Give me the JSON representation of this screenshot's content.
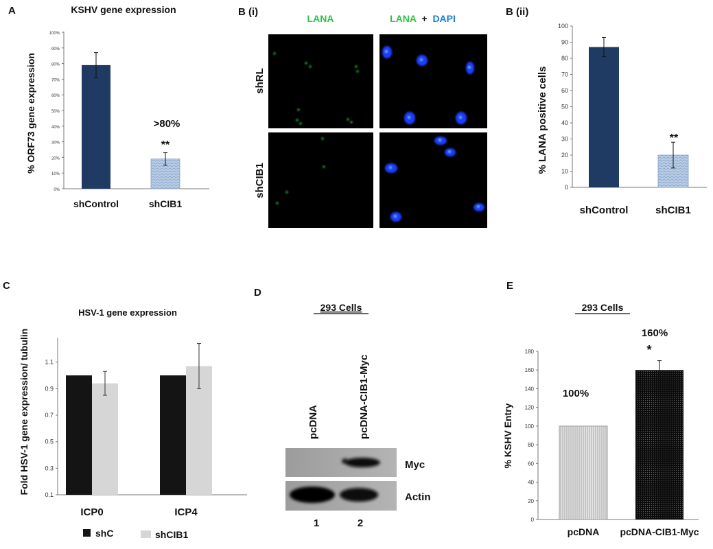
{
  "panel_labels": {
    "a": "A",
    "bi": "B (i)",
    "bii": "B (ii)",
    "c": "C",
    "d": "D",
    "e": "E"
  },
  "colors": {
    "navy": "#1f3a63",
    "light_blue": "#a8bfdc",
    "black": "#141414",
    "light_gray": "#d6d6d6",
    "green": "#2ec24a",
    "blue": "#1a7fd6"
  },
  "chart_data": [
    {
      "panel": "A",
      "type": "bar",
      "title": "KSHV gene expression",
      "ylabel": "% ORF73 gene expression",
      "xlabel": "",
      "categories": [
        "shControl",
        "shCIB1"
      ],
      "values": [
        79,
        19
      ],
      "errors": [
        8,
        4
      ],
      "ylim": [
        0,
        100
      ],
      "yticks": [
        "0%",
        "10%",
        "20%",
        "30%",
        "40%",
        "50%",
        "60%",
        "70%",
        "80%",
        "90%",
        "100%"
      ],
      "annotations": [
        ">80%",
        "**"
      ],
      "grid": false
    },
    {
      "panel": "B (ii)",
      "type": "bar",
      "title": "",
      "ylabel": "% LANA positive cells",
      "xlabel": "",
      "categories": [
        "shControl",
        "shCIB1"
      ],
      "values": [
        87,
        20
      ],
      "errors": [
        6,
        8
      ],
      "ylim": [
        0,
        100
      ],
      "yticks": [
        "0",
        "10",
        "20",
        "30",
        "40",
        "50",
        "60",
        "70",
        "80",
        "90",
        "100"
      ],
      "annotations": [
        "**"
      ],
      "grid": false
    },
    {
      "panel": "C",
      "type": "bar",
      "title": "HSV-1 gene expression",
      "ylabel": "Fold HSV-1 gene expression/ tubulin",
      "xlabel": "",
      "categories": [
        "ICP0",
        "ICP4"
      ],
      "series": [
        {
          "name": "shC",
          "values": [
            1.0,
            1.0
          ],
          "errors": [
            0,
            0
          ]
        },
        {
          "name": "shCIB1",
          "values": [
            0.94,
            1.07
          ],
          "errors": [
            0.09,
            0.17
          ]
        }
      ],
      "ylim": [
        0.1,
        1.3
      ],
      "yticks": [
        "0.1",
        "0.3",
        "0.5",
        "0.7",
        "0.9",
        "1.1"
      ],
      "legend": "bottom",
      "grid": false
    },
    {
      "panel": "E",
      "type": "bar",
      "title": "293 Cells",
      "ylabel": "% KSHV Entry",
      "xlabel": "",
      "categories": [
        "pcDNA",
        "pcDNA-CIB1-Myc"
      ],
      "values": [
        100,
        160
      ],
      "errors": [
        0,
        10
      ],
      "ylim": [
        0,
        180
      ],
      "yticks": [
        "0",
        "20",
        "40",
        "60",
        "80",
        "100",
        "120",
        "140",
        "160",
        "180"
      ],
      "annotations": [
        "100%",
        "160%",
        "*"
      ],
      "grid": false
    }
  ],
  "microscopy": {
    "headers": [
      "LANA",
      "+",
      "DAPI"
    ],
    "rows": [
      "shRL",
      "shCIB1"
    ]
  },
  "blot": {
    "title": "293 Cells",
    "lanes": [
      "pcDNA",
      "pcDNA-CIB1-Myc"
    ],
    "bands": [
      "Myc",
      "Actin"
    ],
    "lane_numbers": [
      "1",
      "2"
    ]
  }
}
